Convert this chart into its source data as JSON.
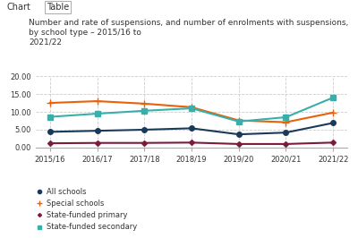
{
  "x_labels": [
    "2015/16",
    "2016/17",
    "2017/18",
    "2018/19",
    "2019/20",
    "2020/21",
    "2021/22"
  ],
  "x_positions": [
    0,
    1,
    2,
    3,
    4,
    5,
    6
  ],
  "series": {
    "All schools": {
      "values": [
        4.4,
        4.7,
        5.0,
        5.4,
        3.7,
        4.2,
        6.9
      ],
      "color": "#1a3a5c",
      "marker": "o",
      "markersize": 4,
      "linewidth": 1.5
    },
    "Special schools": {
      "values": [
        12.5,
        13.0,
        12.3,
        11.3,
        7.6,
        7.1,
        9.8
      ],
      "color": "#e8620a",
      "marker": "+",
      "markersize": 6,
      "linewidth": 1.5
    },
    "State-funded primary": {
      "values": [
        1.2,
        1.3,
        1.3,
        1.4,
        1.0,
        1.0,
        1.4
      ],
      "color": "#7b1c3e",
      "marker": "D",
      "markersize": 3,
      "linewidth": 1.5
    },
    "State-funded secondary": {
      "values": [
        8.6,
        9.5,
        10.3,
        11.0,
        7.3,
        8.5,
        14.0
      ],
      "color": "#3aafa9",
      "marker": "s",
      "markersize": 4,
      "linewidth": 1.5
    }
  },
  "ylim": [
    0,
    20.0
  ],
  "yticks": [
    0.0,
    5.0,
    10.0,
    15.0,
    20.0
  ],
  "title": "Number and rate of suspensions, and number of enrolments with suspensions, by school type – 2015/16 to\n2021/22",
  "title_fontsize": 6.5,
  "tab_labels": [
    "Chart",
    "Table"
  ],
  "background_color": "#ffffff",
  "grid_color": "#cccccc",
  "legend_order": [
    "All schools",
    "Special schools",
    "State-funded primary",
    "State-funded secondary"
  ]
}
